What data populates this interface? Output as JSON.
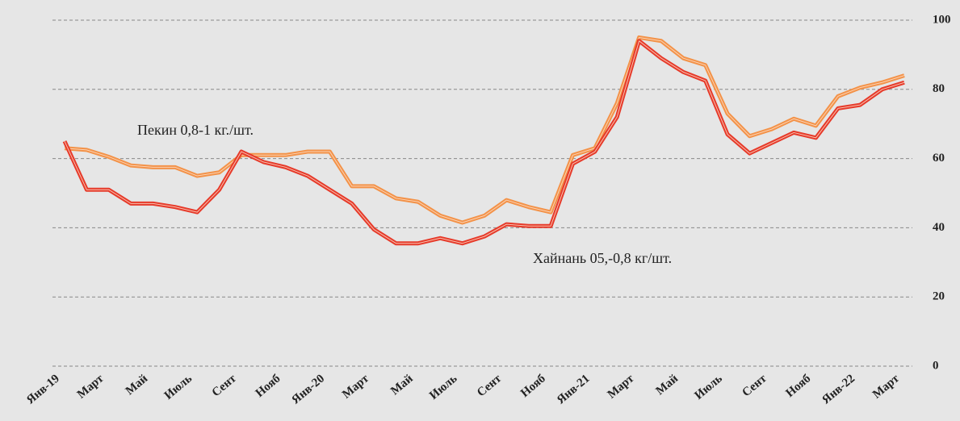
{
  "chart_data": {
    "type": "line",
    "categories": [
      "Янв-19",
      null,
      "Март",
      null,
      "Май",
      null,
      "Июль",
      null,
      "Сент",
      null,
      "Нояб",
      null,
      "Янв-20",
      null,
      "Март",
      null,
      "Май",
      null,
      "Июль",
      null,
      "Сент",
      null,
      "Нояб",
      null,
      "Янв-21",
      null,
      "Март",
      null,
      "Май",
      null,
      "Июль",
      null,
      "Сент",
      null,
      "Нояб",
      null,
      "Янв-22",
      null,
      "Март"
    ],
    "series": [
      {
        "name": "Пекин 0,8-1 кг./шт.",
        "color": "#f39248",
        "values": [
          63,
          62.5,
          60.5,
          58,
          57.5,
          57.5,
          55,
          56,
          61,
          61,
          61,
          62,
          62,
          52,
          52,
          48.5,
          47.5,
          43.5,
          41.5,
          43.5,
          48,
          46,
          44.5,
          61,
          63,
          76,
          95,
          94,
          89,
          87,
          73,
          66.5,
          68.5,
          71.5,
          69.5,
          78,
          80.5,
          82,
          84
        ]
      },
      {
        "name": "Хайнань 05,-0,8 кг/шт.",
        "color": "#e63a2a",
        "values": [
          65,
          51,
          51,
          47,
          47,
          46,
          44.5,
          51,
          62,
          59,
          57.5,
          55,
          51,
          47,
          39.5,
          35.5,
          35.5,
          37,
          35.5,
          37.5,
          41,
          40.5,
          40.5,
          58.5,
          62,
          72,
          94,
          89,
          85,
          82.5,
          67,
          61.5,
          64.5,
          67.5,
          66,
          74.5,
          75.5,
          80,
          82
        ]
      }
    ],
    "ylim": [
      0,
      100
    ],
    "yticks": [
      0,
      20,
      40,
      60,
      80,
      100
    ],
    "grid": true
  }
}
